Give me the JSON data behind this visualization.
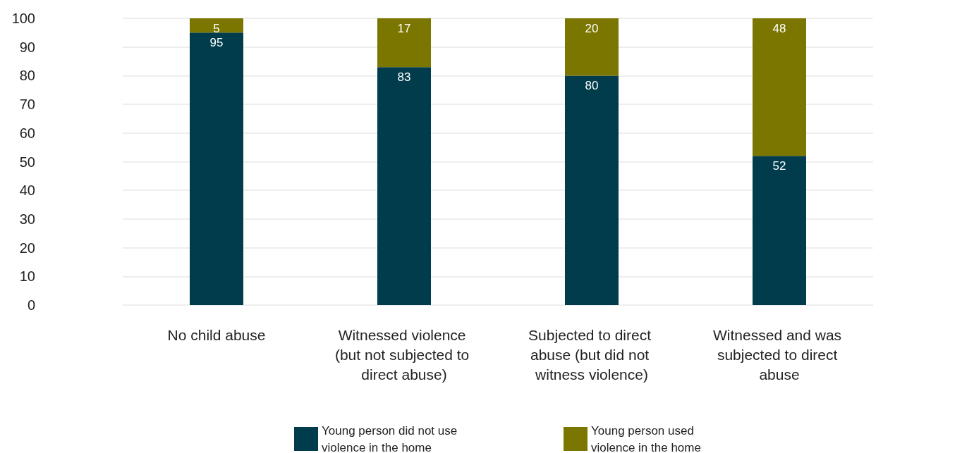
{
  "chart_data": {
    "type": "bar",
    "stacked": true,
    "categories": [
      "No child abuse",
      "Witnessed violence (but not subjected to direct abuse)",
      "Subjected to direct abuse (but did not witness violence)",
      "Witnessed and was subjected to direct abuse"
    ],
    "series": [
      {
        "name": "Young person did not use violence in the home",
        "color": "#003c4b",
        "values": [
          95,
          83,
          80,
          52
        ]
      },
      {
        "name": "Young person used violence in the home",
        "color": "#7a7600",
        "values": [
          5,
          17,
          20,
          48
        ]
      }
    ],
    "ylim": [
      0,
      100
    ],
    "yticks": [
      0,
      10,
      20,
      30,
      40,
      50,
      60,
      70,
      80,
      90,
      100
    ],
    "grid": "y",
    "legend": "bottom",
    "data_labels": true
  }
}
